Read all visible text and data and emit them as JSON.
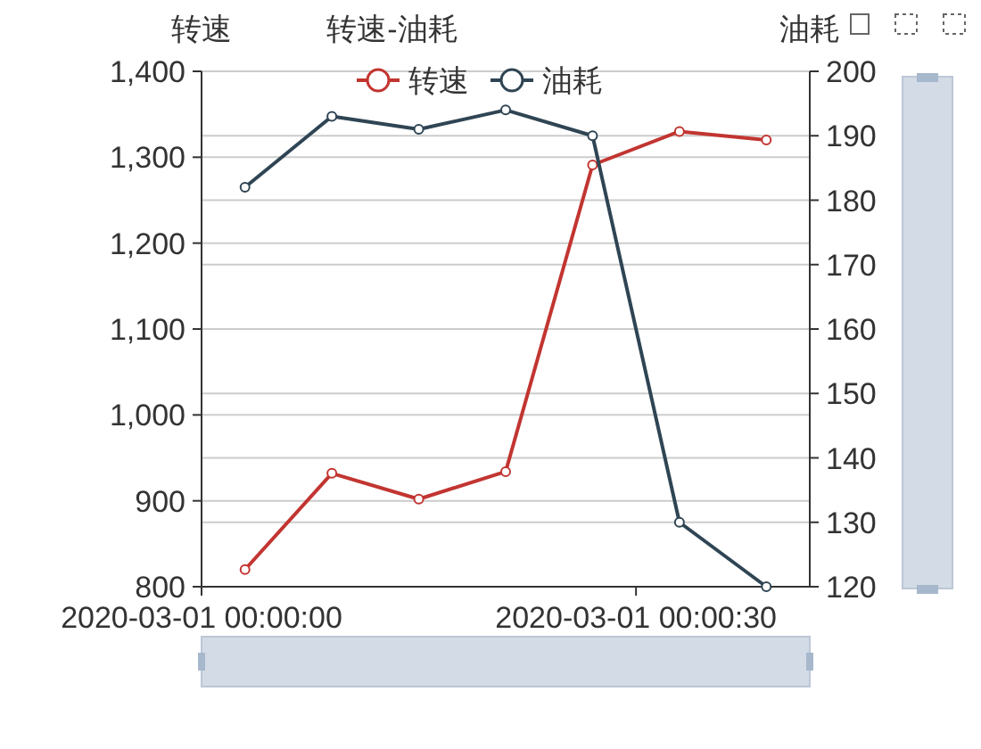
{
  "chart_data": {
    "type": "line",
    "title": "转速-油耗",
    "ylabel": "转速",
    "y2label": "油耗",
    "x": [
      "2020-03-01T00:00:03",
      "2020-03-01T00:00:09",
      "2020-03-01T00:00:15",
      "2020-03-01T00:00:21",
      "2020-03-01T00:00:27",
      "2020-03-01T00:00:33",
      "2020-03-01T00:00:39"
    ],
    "series": [
      {
        "name": "转速",
        "color": "#c23531",
        "values": [
          820,
          932,
          902,
          934,
          1291,
          1330,
          1320
        ]
      },
      {
        "name": "油耗",
        "color": "#2f4554",
        "axis": "y2",
        "values": [
          182,
          193,
          191,
          194,
          190,
          130,
          120
        ]
      }
    ],
    "xlim": [
      "2020-03-01T00:00:00",
      "2020-03-01T00:00:42"
    ],
    "xticks": [
      {
        "value": "2020-03-01T00:00:00",
        "label": "2020-03-01 00:00:00"
      },
      {
        "value": "2020-03-01T00:00:30",
        "label": "2020-03-01 00:00:30"
      }
    ],
    "ylim": [
      800,
      1400
    ],
    "yticks": [
      {
        "value": 800,
        "label": "800"
      },
      {
        "value": 900,
        "label": "900"
      },
      {
        "value": 1000,
        "label": "1,000"
      },
      {
        "value": 1100,
        "label": "1,100"
      },
      {
        "value": 1200,
        "label": "1,200"
      },
      {
        "value": 1300,
        "label": "1,300"
      },
      {
        "value": 1400,
        "label": "1,400"
      }
    ],
    "y2lim": [
      120,
      200
    ],
    "y2ticks": [
      120,
      130,
      140,
      150,
      160,
      170,
      180,
      190,
      200
    ],
    "grid": true,
    "legend": "top",
    "marker": "circle",
    "line_style": "solid"
  }
}
